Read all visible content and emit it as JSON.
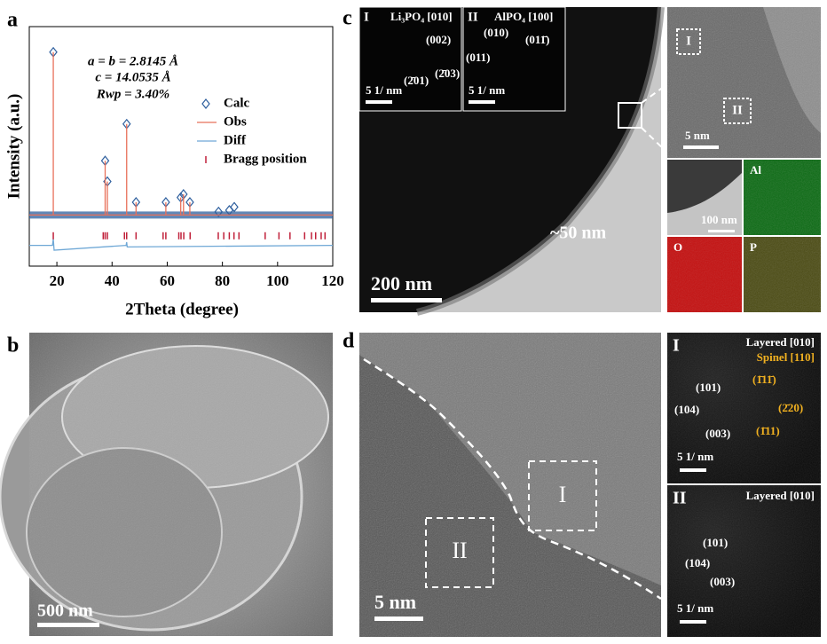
{
  "chart_data": {
    "type": "line",
    "xlabel": "2Theta (degree)",
    "ylabel": "Intensity (a.u.)",
    "xlim": [
      10,
      120
    ],
    "xticks": [
      20,
      40,
      60,
      80,
      100,
      120
    ],
    "ylim": [
      -32,
      118
    ],
    "annotations": [
      "a = b = 2.8145 Å",
      "c = 14.0535 Å",
      "Rwp = 3.40%"
    ],
    "legend": "right",
    "series": [
      {
        "name": "Calc",
        "color": "#2e5f9e",
        "marker": "diamond",
        "x": [
          18.7,
          37.5,
          38.3,
          45.3,
          48.7,
          59.5,
          64.9,
          65.9,
          68.2,
          78.6,
          82.5,
          84.3
        ],
        "values": [
          102,
          34,
          21,
          57,
          8,
          8,
          11,
          13,
          8,
          2,
          3,
          5
        ]
      },
      {
        "name": "Obs",
        "color": "#e8705a",
        "marker": "none",
        "x": [
          10,
          18.7,
          18.7,
          18.7,
          37.5,
          37.5,
          37.5,
          38.3,
          38.3,
          38.3,
          45.3,
          45.3,
          45.3,
          48.7,
          48.7,
          48.7,
          59.5,
          59.5,
          59.5,
          64.9,
          64.9,
          64.9,
          65.9,
          65.9,
          65.9,
          68.2,
          68.2,
          68.2,
          120
        ],
        "values": [
          0,
          0,
          102,
          0,
          0,
          34,
          0,
          0,
          21,
          0,
          0,
          57,
          0,
          0,
          8,
          0,
          0,
          8,
          0,
          0,
          11,
          0,
          0,
          13,
          0,
          0,
          8,
          0,
          0
        ]
      },
      {
        "name": "Diff",
        "color": "#6fa8d6",
        "marker": "none",
        "x": [
          10,
          18.4,
          18.7,
          19.0,
          45.1,
          45.3,
          45.5,
          120
        ],
        "values": [
          -19,
          -19,
          -15,
          -22,
          -19,
          -17,
          -20,
          -19
        ]
      },
      {
        "name": "Bragg position",
        "color": "#c0203a",
        "marker": "tick",
        "x": [
          18.7,
          36.8,
          37.5,
          38.3,
          44.5,
          45.3,
          48.7,
          58.5,
          59.5,
          64.2,
          65.0,
          66.0,
          68.3,
          78.5,
          80.5,
          82.5,
          84.2,
          86.0,
          95.5,
          100.5,
          104.5,
          109.8,
          112.3,
          113.8,
          115.8,
          117.2
        ],
        "values": [
          -13,
          -13,
          -13,
          -13,
          -13,
          -13,
          -13,
          -13,
          -13,
          -13,
          -13,
          -13,
          -13,
          -13,
          -13,
          -13,
          -13,
          -13,
          -13,
          -13,
          -13,
          -13,
          -13,
          -13,
          -13,
          -13
        ]
      }
    ]
  },
  "panels": [
    "a",
    "b",
    "c",
    "d"
  ],
  "b": {
    "scale": "500 nm"
  },
  "c": {
    "inset_1": {
      "roman": "I",
      "title": "Li₃PO₄ [010]",
      "spots": [
        "(002)",
        "(2̄01)",
        "(2̄03)"
      ],
      "scale": "5 1/ nm"
    },
    "inset_2": {
      "roman": "II",
      "title": "AlPO₄ [100]",
      "spots": [
        "(010)",
        "(011̄)",
        "(011)"
      ],
      "scale": "5 1/ nm"
    },
    "hrtem": {
      "regions": [
        "I",
        "II"
      ],
      "scale": "5 nm"
    },
    "eds": {
      "scale": "100 nm",
      "elements": [
        "Al",
        "O",
        "P"
      ]
    },
    "thickness": "~50 nm",
    "scale": "200 nm"
  },
  "d": {
    "regions": [
      "I",
      "II"
    ],
    "scale": "5 nm",
    "fft_1": {
      "roman": "I",
      "titles": [
        "Layered [010]",
        "Spinel [110]"
      ],
      "layered_spots": [
        "(101)",
        "(104)",
        "(003)"
      ],
      "spinel_spots": [
        "(1̄11̄)",
        "(2̄20)",
        "(1̄11)"
      ],
      "scale": "5 1/ nm"
    },
    "fft_2": {
      "roman": "II",
      "title": "Layered [010]",
      "spots": [
        "(101)",
        "(104)",
        "(003)"
      ],
      "scale": "5 1/ nm"
    }
  }
}
